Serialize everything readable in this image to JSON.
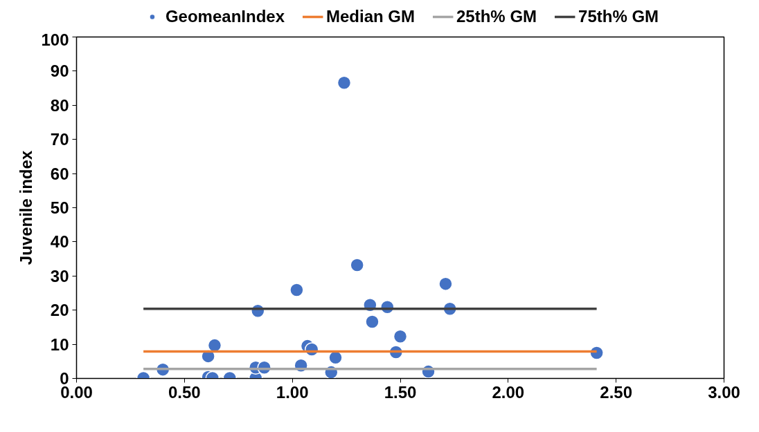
{
  "chart_data": {
    "type": "scatter",
    "ylabel": "Juvenile index",
    "xlim": [
      0,
      3
    ],
    "ylim": [
      0,
      100
    ],
    "xticks": [
      {
        "value": 0,
        "label": "0.00"
      },
      {
        "value": 0.5,
        "label": "0.50"
      },
      {
        "value": 1,
        "label": "1.00"
      },
      {
        "value": 1.5,
        "label": "1.50"
      },
      {
        "value": 2,
        "label": "2.00"
      },
      {
        "value": 2.5,
        "label": "2.50"
      },
      {
        "value": 3,
        "label": "3.00"
      }
    ],
    "yticks": [
      0,
      10,
      20,
      30,
      40,
      50,
      60,
      70,
      80,
      90,
      100
    ],
    "grid": false,
    "legend": "top",
    "series": [
      {
        "name": "GeomeanIndex",
        "marker": "circle",
        "color": "#4472c4",
        "x": [
          0.31,
          0.4,
          0.61,
          0.61,
          0.63,
          0.64,
          0.71,
          0.83,
          0.83,
          0.84,
          0.87,
          1.02,
          1.04,
          1.07,
          1.09,
          1.18,
          1.2,
          1.24,
          1.3,
          1.36,
          1.37,
          1.44,
          1.48,
          1.5,
          1.63,
          1.71,
          1.73,
          2.41
        ],
        "values": [
          0.1,
          2.6,
          6.5,
          0.4,
          0.1,
          9.7,
          0.1,
          0.1,
          3.2,
          19.8,
          3.2,
          25.9,
          3.8,
          9.5,
          8.5,
          1.8,
          6.1,
          86.6,
          33.2,
          21.5,
          16.6,
          20.9,
          7.7,
          12.3,
          2.0,
          27.7,
          20.4,
          7.5
        ]
      },
      {
        "name": "Median GM",
        "type": "line",
        "color": "#ed7d31",
        "x": [
          0.31,
          2.41
        ],
        "values": [
          7.9,
          7.9
        ]
      },
      {
        "name": "25th% GM",
        "type": "line",
        "color": "#a5a5a5",
        "x": [
          0.31,
          2.41
        ],
        "values": [
          2.8,
          2.8
        ]
      },
      {
        "name": "75th% GM",
        "type": "line",
        "color": "#404040",
        "x": [
          0.31,
          2.41
        ],
        "values": [
          20.4,
          20.4
        ]
      }
    ]
  }
}
